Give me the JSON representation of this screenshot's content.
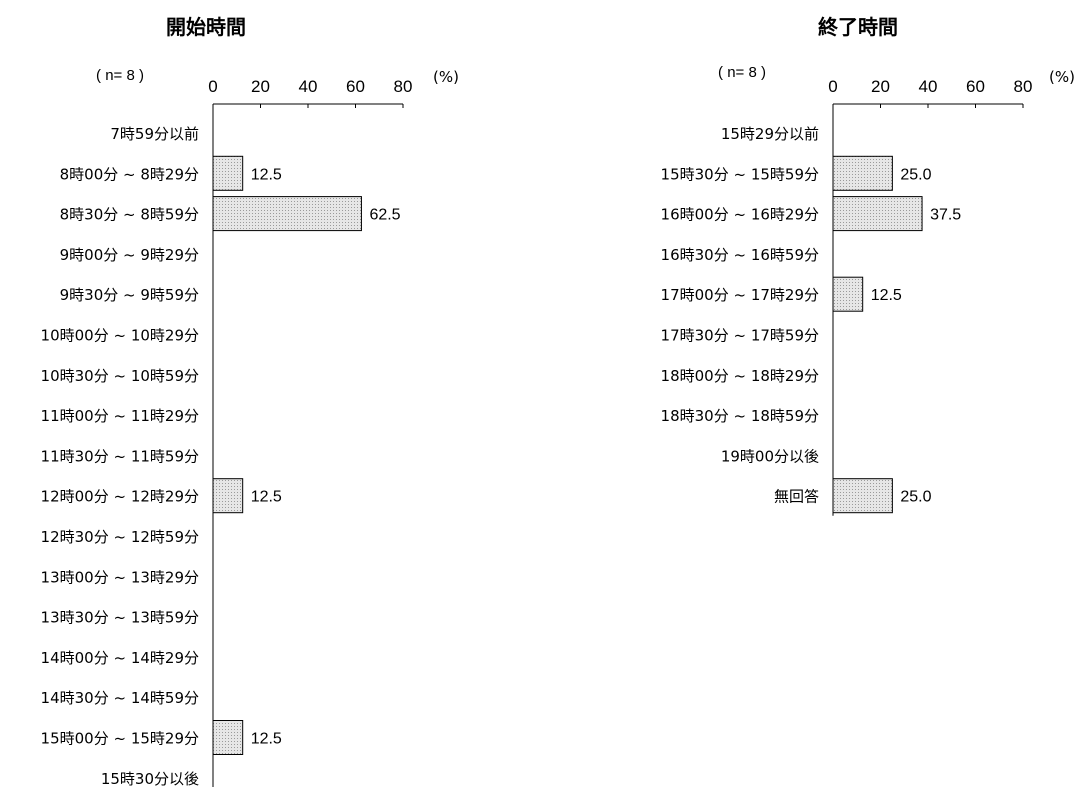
{
  "chart_data": [
    {
      "type": "bar",
      "orientation": "horizontal",
      "title": "開始時間",
      "n_label": "( n= 8 )",
      "unit_label": "(%)",
      "xlim": [
        0,
        80
      ],
      "ticks": [
        0,
        20,
        40,
        60,
        80
      ],
      "categories": [
        "7時59分以前",
        "8時00分 ~ 8時29分",
        "8時30分 ~ 8時59分",
        "9時00分 ~ 9時29分",
        "9時30分 ~ 9時59分",
        "10時00分 ~ 10時29分",
        "10時30分 ~ 10時59分",
        "11時00分 ~ 11時29分",
        "11時30分 ~ 11時59分",
        "12時00分 ~ 12時29分",
        "12時30分 ~ 12時59分",
        "13時00分 ~ 13時29分",
        "13時30分 ~ 13時59分",
        "14時00分 ~ 14時29分",
        "14時30分 ~ 14時59分",
        "15時00分 ~ 15時29分",
        "15時30分以後"
      ],
      "values": [
        null,
        12.5,
        62.5,
        null,
        null,
        null,
        null,
        null,
        null,
        12.5,
        null,
        null,
        null,
        null,
        null,
        12.5,
        null
      ]
    },
    {
      "type": "bar",
      "orientation": "horizontal",
      "title": "終了時間",
      "n_label": "( n= 8 )",
      "unit_label": "(%)",
      "xlim": [
        0,
        80
      ],
      "ticks": [
        0,
        20,
        40,
        60,
        80
      ],
      "categories": [
        "15時29分以前",
        "15時30分 ~ 15時59分",
        "16時00分 ~ 16時29分",
        "16時30分 ~ 16時59分",
        "17時00分 ~ 17時29分",
        "17時30分 ~ 17時59分",
        "18時00分 ~ 18時29分",
        "18時30分 ~ 18時59分",
        "19時00分以後",
        "無回答"
      ],
      "values": [
        null,
        25.0,
        37.5,
        null,
        12.5,
        null,
        null,
        null,
        null,
        25.0
      ]
    }
  ],
  "colors": {
    "bar_fill": "#e6e6e6",
    "bar_dot": "#9a9a9a",
    "axis": "#000000"
  }
}
